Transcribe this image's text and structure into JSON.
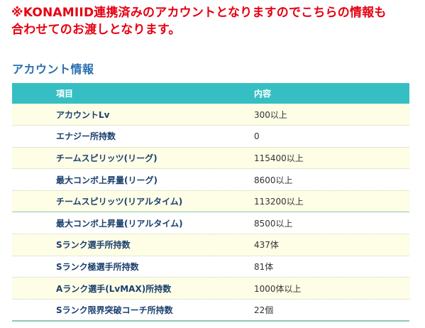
{
  "notice": {
    "line1": "※KONAMIID連携済みのアカウントとなりますのでこちらの情報も",
    "line2": "合わせてのお渡しとなります。"
  },
  "section": {
    "title": "アカウント情報"
  },
  "table": {
    "headers": {
      "item": "項目",
      "content": "内容"
    },
    "rows": [
      {
        "item": "アカウントLv",
        "value": "300以上"
      },
      {
        "item": "エナジー所持数",
        "value": "0"
      },
      {
        "item": "チームスピリッツ(リーグ)",
        "value": "115400以上"
      },
      {
        "item": "最大コンボ上昇量(リーグ)",
        "value": "8600以上"
      },
      {
        "item": "チームスピリッツ(リアルタイム)",
        "value": "113200以上"
      },
      {
        "item": "最大コンボ上昇量(リアルタイム)",
        "value": "8500以上"
      },
      {
        "item": "Sランク選手所持数",
        "value": "437体"
      },
      {
        "item": "Sランク極選手所持数",
        "value": "81体"
      },
      {
        "item": "Aランク選手(LvMAX)所持数",
        "value": "1000体以上"
      },
      {
        "item": "Sランク限界突破コーチ所持数",
        "value": "22個"
      }
    ]
  },
  "colors": {
    "notice": "#e60012",
    "title": "#2a6fb2",
    "header_bg": "#36bfc3",
    "row_alt_bg": "#fefde6"
  }
}
